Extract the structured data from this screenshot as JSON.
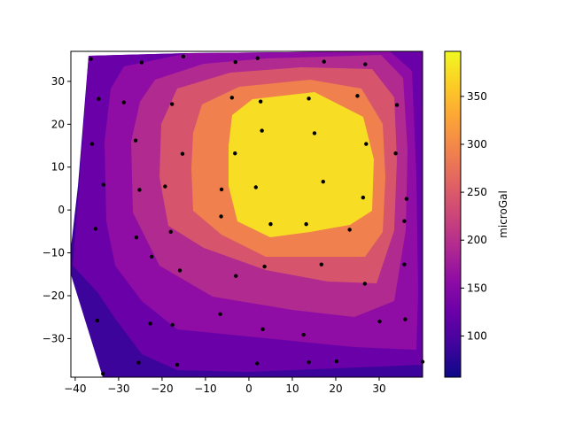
{
  "chart_data": {
    "type": "contour",
    "title": "",
    "xlabel": "",
    "ylabel": "",
    "xlim": [
      -41,
      40
    ],
    "ylim": [
      -39,
      37
    ],
    "x_ticks": [
      -40,
      -30,
      -20,
      -10,
      0,
      10,
      20,
      30
    ],
    "y_ticks": [
      -30,
      -20,
      -10,
      0,
      10,
      20,
      30
    ],
    "colormap": "plasma",
    "colorbar": {
      "label": "microGal",
      "range": [
        57,
        397
      ],
      "ticks": [
        100,
        150,
        200,
        250,
        300,
        350
      ]
    },
    "contour_levels": [
      57,
      100,
      150,
      200,
      250,
      300,
      350,
      397
    ],
    "level_colors": [
      "#3d049b",
      "#6a00a8",
      "#8f0da4",
      "#b02a90",
      "#d6556d",
      "#f0804e",
      "#fcb02c",
      "#f7dd23"
    ],
    "points": [
      [
        -36.4,
        35.2
      ],
      [
        -24.7,
        34.4
      ],
      [
        -15.1,
        35.8
      ],
      [
        -3.1,
        34.5
      ],
      [
        2.0,
        35.4
      ],
      [
        17.3,
        34.6
      ],
      [
        26.8,
        34.0
      ],
      [
        -34.6,
        25.9
      ],
      [
        -28.8,
        25.1
      ],
      [
        -17.7,
        24.7
      ],
      [
        -3.9,
        26.2
      ],
      [
        2.7,
        25.3
      ],
      [
        13.8,
        26.0
      ],
      [
        25.0,
        26.6
      ],
      [
        34.1,
        24.5
      ],
      [
        -36.1,
        15.4
      ],
      [
        -26.1,
        16.2
      ],
      [
        -15.3,
        13.1
      ],
      [
        -3.2,
        13.2
      ],
      [
        3.0,
        18.5
      ],
      [
        15.1,
        17.9
      ],
      [
        27.0,
        15.4
      ],
      [
        33.8,
        13.2
      ],
      [
        -33.5,
        5.9
      ],
      [
        -25.2,
        4.7
      ],
      [
        -19.3,
        5.5
      ],
      [
        -6.3,
        4.8
      ],
      [
        1.6,
        5.3
      ],
      [
        17.1,
        6.6
      ],
      [
        26.3,
        2.9
      ],
      [
        36.3,
        2.6
      ],
      [
        -35.3,
        -4.4
      ],
      [
        -25.9,
        -6.4
      ],
      [
        -18.0,
        -5.1
      ],
      [
        -6.4,
        -1.5
      ],
      [
        5.0,
        -3.3
      ],
      [
        13.2,
        -3.3
      ],
      [
        23.2,
        -4.6
      ],
      [
        35.8,
        -2.6
      ],
      [
        -22.4,
        -10.9
      ],
      [
        -15.9,
        -14.1
      ],
      [
        -3.0,
        -15.4
      ],
      [
        3.6,
        -13.2
      ],
      [
        16.7,
        -12.7
      ],
      [
        26.7,
        -17.2
      ],
      [
        35.8,
        -12.7
      ],
      [
        -34.9,
        -25.8
      ],
      [
        -22.7,
        -26.5
      ],
      [
        -17.6,
        -26.8
      ],
      [
        -6.6,
        -24.3
      ],
      [
        3.2,
        -27.8
      ],
      [
        12.6,
        -29.1
      ],
      [
        30.1,
        -26.0
      ],
      [
        36.0,
        -25.5
      ],
      [
        -33.6,
        -38.2
      ],
      [
        -25.4,
        -35.6
      ],
      [
        -16.5,
        -36.1
      ],
      [
        1.9,
        -35.8
      ],
      [
        13.8,
        -35.5
      ],
      [
        20.2,
        -35.3
      ],
      [
        40.0,
        -35.4
      ]
    ]
  }
}
